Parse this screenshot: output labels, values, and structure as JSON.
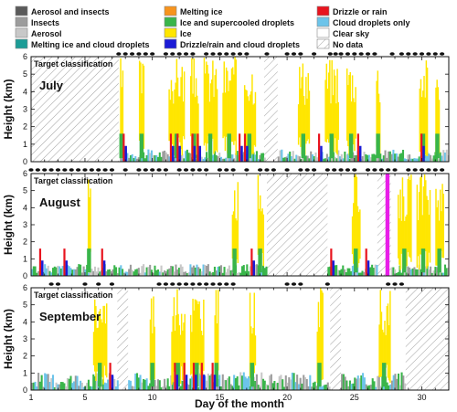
{
  "legend": {
    "items": [
      {
        "label": "Aerosol and insects",
        "color": "#5a5a5a",
        "swatch": "solid"
      },
      {
        "label": "Insects",
        "color": "#9c9c9c",
        "swatch": "solid"
      },
      {
        "label": "Aerosol",
        "color": "#c8c8c8",
        "swatch": "solid"
      },
      {
        "label": "Melting ice and cloud droplets",
        "color": "#1c9c96",
        "swatch": "solid"
      },
      {
        "label": "Melting ice",
        "color": "#f7941d",
        "swatch": "solid"
      },
      {
        "label": "Ice and supercooled droplets",
        "color": "#39b54a",
        "swatch": "solid"
      },
      {
        "label": "Ice",
        "color": "#ffe600",
        "swatch": "solid"
      },
      {
        "label": "Drizzle/rain and cloud droplets",
        "color": "#1b1bd6",
        "swatch": "solid"
      },
      {
        "label": "Drizzle or rain",
        "color": "#e8141e",
        "swatch": "solid"
      },
      {
        "label": "Cloud droplets only",
        "color": "#6cc4ea",
        "swatch": "solid"
      },
      {
        "label": "Clear sky",
        "color": "#ffffff",
        "swatch": "solid"
      },
      {
        "label": "No data",
        "color": "#ffffff",
        "swatch": "hatch"
      }
    ]
  },
  "chart_data": {
    "type": "heatmap",
    "x_label": "Day of the month",
    "y_label": "Height (km)",
    "xlim": [
      1,
      32
    ],
    "ylim": [
      0,
      6
    ],
    "x_ticks": [
      1,
      5,
      10,
      15,
      20,
      25,
      30
    ],
    "y_ticks": [
      0,
      1,
      2,
      3,
      4,
      5,
      6
    ],
    "panels": [
      {
        "month": "July",
        "subtitle": "Target classification",
        "no_data": [
          [
            1,
            7.5
          ],
          [
            18.3,
            19.3
          ]
        ],
        "ice": [
          [
            7.6,
            7.8
          ],
          [
            9.0,
            9.4
          ],
          [
            11.2,
            12.4
          ],
          [
            12.8,
            13.4
          ],
          [
            13.8,
            14.8
          ],
          [
            15.2,
            16.2
          ],
          [
            16.8,
            17.6
          ],
          [
            20.8,
            21.6
          ],
          [
            22.8,
            23.8
          ],
          [
            24.4,
            25.1
          ],
          [
            26.6,
            26.9
          ],
          [
            29.8,
            30.4
          ],
          [
            31.0,
            31.3
          ]
        ],
        "low_cloud": [
          [
            7.6,
            18.3
          ],
          [
            19.3,
            32
          ]
        ],
        "rain": [
          7.8,
          11.3,
          11.8,
          12.9,
          13.3,
          16.4,
          16.8,
          22.3,
          25.2,
          29.9
        ],
        "magenta": [],
        "precip_days": [
          7.5,
          8,
          8.5,
          9,
          9.5,
          10,
          11,
          11.5,
          12,
          12.5,
          13,
          14,
          14.5,
          15,
          15.5,
          16,
          16.5,
          17,
          18.5,
          20,
          20.5,
          21,
          22,
          23.2,
          23.6,
          24,
          24.5,
          25,
          25.5,
          26,
          26.5,
          27.8,
          28.5,
          29,
          29.5,
          30,
          30.5,
          31,
          31.5
        ]
      },
      {
        "month": "August",
        "subtitle": "Target classification",
        "no_data": [
          [
            18.5,
            23
          ],
          [
            26.7,
            27.7
          ]
        ],
        "ice": [
          [
            5.2,
            5.4
          ],
          [
            15.9,
            16.3
          ],
          [
            17.8,
            18.2
          ],
          [
            24.8,
            25.4
          ],
          [
            28.2,
            29.2
          ],
          [
            29.6,
            30.6
          ],
          [
            31.0,
            31.6
          ]
        ],
        "low_cloud": [
          [
            1,
            18.5
          ],
          [
            23,
            26.7
          ],
          [
            27.7,
            32
          ]
        ],
        "rain": [
          1.6,
          3.4,
          6.2,
          17.3,
          23.2,
          25.8
        ],
        "magenta": [
          [
            27.3,
            27.6
          ]
        ],
        "precip_days": [
          1,
          1.5,
          2,
          2.5,
          3,
          3.5,
          4,
          4.5,
          5,
          5.5,
          6,
          6.5,
          7,
          8,
          9,
          9.5,
          10,
          10.5,
          11,
          12,
          12.5,
          13,
          13.5,
          14,
          15,
          15.5,
          16,
          17,
          18,
          18.5,
          19,
          20,
          21,
          21.5,
          22,
          23,
          23.5,
          24,
          24.5,
          25,
          26,
          26.5,
          27,
          27.5,
          28,
          29,
          29.5,
          30,
          30.5,
          31,
          31.5
        ]
      },
      {
        "month": "September",
        "subtitle": "Target classification",
        "no_data": [
          [
            7.4,
            8.2
          ],
          [
            23.2,
            24
          ],
          [
            28.8,
            32
          ]
        ],
        "ice": [
          [
            5.6,
            6.6
          ],
          [
            9.8,
            10.2
          ],
          [
            11.4,
            12.4
          ],
          [
            12.8,
            13.8
          ],
          [
            14.6,
            14.9
          ],
          [
            17.2,
            17.6
          ],
          [
            22.2,
            22.6
          ],
          [
            26.8,
            27.6
          ]
        ],
        "low_cloud": [
          [
            1,
            7.4
          ],
          [
            8.2,
            23.2
          ],
          [
            24,
            28.8
          ]
        ],
        "rain": [
          6.8,
          11.6,
          12.3,
          13.0,
          13.6,
          14.4
        ],
        "magenta": [],
        "precip_days": [
          2.5,
          3,
          5,
          6,
          7,
          10.5,
          11,
          11.5,
          12,
          12.5,
          13,
          13.5,
          14,
          14.5,
          15,
          15.5,
          16,
          20,
          20.5,
          21,
          23,
          27.5,
          28,
          28.5
        ]
      }
    ]
  }
}
